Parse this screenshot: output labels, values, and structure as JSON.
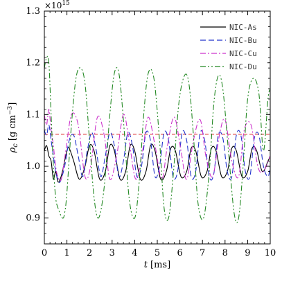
{
  "chart_data": {
    "type": "line",
    "xlabel": "t",
    "xlabel_unit": "[ms]",
    "ylabel": "ρc [g cm−3]",
    "ylabel_main": "ρ",
    "ylabel_sub": "c",
    "ylabel_unit": "[g cm",
    "ylabel_exp": "−3",
    "ylabel_close": "]",
    "y_multiplier": "×10",
    "y_multiplier_exp": "15",
    "xlim": [
      0,
      10
    ],
    "ylim": [
      0.85,
      1.3
    ],
    "x_ticks": [
      0,
      1,
      2,
      3,
      4,
      5,
      6,
      7,
      8,
      9,
      10
    ],
    "x_tick_labels": [
      "0",
      "1",
      "2",
      "3",
      "4",
      "5",
      "6",
      "7",
      "8",
      "9",
      "10"
    ],
    "y_ticks": [
      0.9,
      1.0,
      1.1,
      1.2,
      1.3
    ],
    "y_tick_labels": [
      "0.9",
      "1.0",
      "1.1",
      "1.2",
      "1.3"
    ],
    "grid": false,
    "legend_position": "top-right",
    "reference_line": {
      "y": 1.062,
      "color": "#dd3333",
      "style": "dashed"
    },
    "series": [
      {
        "name": "NIC-As",
        "color": "#000000",
        "style": "solid",
        "x": [
          0,
          0.1,
          0.2,
          0.3,
          0.4,
          0.5,
          0.6,
          0.7,
          0.8,
          1.0,
          1.1,
          1.3,
          1.55,
          1.8,
          2.0,
          2.2,
          2.45,
          2.7,
          2.9,
          3.1,
          3.35,
          3.6,
          3.8,
          4.0,
          4.25,
          4.5,
          4.7,
          4.9,
          5.15,
          5.4,
          5.6,
          5.8,
          6.05,
          6.3,
          6.5,
          6.7,
          6.95,
          7.2,
          7.4,
          7.6,
          7.85,
          8.1,
          8.3,
          8.5,
          8.75,
          9.0,
          9.2,
          9.4,
          9.65,
          9.9,
          10.0
        ],
        "y": [
          1.03,
          1.04,
          1.02,
          1.01,
          0.975,
          0.99,
          0.97,
          0.975,
          0.99,
          1.03,
          1.035,
          1.01,
          0.975,
          1.0,
          1.04,
          1.03,
          0.975,
          0.99,
          1.04,
          1.03,
          0.975,
          0.99,
          1.04,
          1.03,
          0.975,
          0.99,
          1.04,
          1.03,
          0.975,
          0.99,
          1.035,
          1.03,
          0.98,
          0.99,
          1.035,
          1.03,
          0.98,
          0.99,
          1.035,
          1.03,
          0.98,
          0.99,
          1.035,
          1.03,
          0.98,
          0.99,
          1.035,
          1.03,
          0.99,
          1.01,
          1.02
        ]
      },
      {
        "name": "NIC-Bu",
        "color": "#2233cc",
        "style": "dashed",
        "x": [
          0,
          0.1,
          0.2,
          0.3,
          0.4,
          0.5,
          0.6,
          0.7,
          0.9,
          1.1,
          1.3,
          1.5,
          1.7,
          1.9,
          2.1,
          2.3,
          2.5,
          2.7,
          2.9,
          3.1,
          3.3,
          3.5,
          3.7,
          3.9,
          4.1,
          4.3,
          4.5,
          4.7,
          4.9,
          5.1,
          5.3,
          5.5,
          5.7,
          5.9,
          6.1,
          6.3,
          6.5,
          6.7,
          6.9,
          7.1,
          7.3,
          7.5,
          7.7,
          7.9,
          8.1,
          8.3,
          8.5,
          8.7,
          8.9,
          9.1,
          9.3,
          9.5,
          9.7,
          9.9,
          10.0
        ],
        "y": [
          1.07,
          1.06,
          1.08,
          1.05,
          1.02,
          0.99,
          0.975,
          0.97,
          1.0,
          1.05,
          1.06,
          1.02,
          0.98,
          1.03,
          1.065,
          1.03,
          0.98,
          1.02,
          1.065,
          1.04,
          0.98,
          1.01,
          1.065,
          1.04,
          0.98,
          1.0,
          1.065,
          1.05,
          0.98,
          1.0,
          1.065,
          1.05,
          0.98,
          0.99,
          1.065,
          1.05,
          0.98,
          0.99,
          1.065,
          1.05,
          0.98,
          0.985,
          1.06,
          1.055,
          0.99,
          0.98,
          1.06,
          1.06,
          0.99,
          0.98,
          1.055,
          1.06,
          1.0,
          0.98,
          1.0
        ]
      },
      {
        "name": "NIC-Cu",
        "color": "#cc33cc",
        "style": "dashdot",
        "x": [
          0,
          0.1,
          0.2,
          0.3,
          0.4,
          0.5,
          0.6,
          0.75,
          0.95,
          1.2,
          1.5,
          1.8,
          2.05,
          2.35,
          2.65,
          2.9,
          3.2,
          3.5,
          3.75,
          4.05,
          4.35,
          4.6,
          4.9,
          5.2,
          5.45,
          5.75,
          6.05,
          6.3,
          6.6,
          6.9,
          7.15,
          7.45,
          7.75,
          8.0,
          8.3,
          8.6,
          8.85,
          9.15,
          9.45,
          9.7,
          10.0
        ],
        "y": [
          1.1,
          1.08,
          1.11,
          1.07,
          1.04,
          1.0,
          0.98,
          0.975,
          1.03,
          1.1,
          1.08,
          0.98,
          1.0,
          1.095,
          1.06,
          0.975,
          1.02,
          1.1,
          1.05,
          0.975,
          1.03,
          1.095,
          1.04,
          0.975,
          1.04,
          1.095,
          1.03,
          0.975,
          1.05,
          1.09,
          1.02,
          0.98,
          1.06,
          1.09,
          1.01,
          0.98,
          1.07,
          1.08,
          1.0,
          0.99,
          1.02
        ]
      },
      {
        "name": "NIC-Du",
        "color": "#228822",
        "style": "dashdotdot",
        "x": [
          0,
          0.1,
          0.2,
          0.3,
          0.4,
          0.5,
          0.6,
          0.8,
          0.9,
          1.0,
          1.2,
          1.4,
          1.6,
          1.8,
          2.0,
          2.2,
          2.4,
          2.65,
          2.9,
          3.1,
          3.3,
          3.5,
          3.75,
          4.0,
          4.2,
          4.4,
          4.6,
          4.85,
          5.1,
          5.3,
          5.5,
          5.7,
          5.95,
          6.2,
          6.4,
          6.6,
          6.8,
          7.05,
          7.3,
          7.5,
          7.7,
          7.9,
          8.15,
          8.4,
          8.6,
          8.8,
          9.0,
          9.25,
          9.5,
          9.7,
          9.9,
          10.0
        ],
        "y": [
          1.19,
          1.21,
          1.2,
          1.1,
          1.0,
          0.94,
          0.92,
          0.9,
          0.91,
          0.95,
          1.08,
          1.17,
          1.19,
          1.16,
          1.05,
          0.94,
          0.9,
          0.96,
          1.1,
          1.18,
          1.18,
          1.09,
          0.94,
          0.9,
          0.97,
          1.1,
          1.18,
          1.17,
          1.05,
          0.92,
          0.9,
          0.98,
          1.12,
          1.175,
          1.16,
          1.06,
          0.93,
          0.9,
          0.99,
          1.12,
          1.175,
          1.15,
          1.03,
          0.91,
          0.9,
          1.0,
          1.13,
          1.17,
          1.14,
          1.03,
          1.13,
          1.15
        ]
      }
    ]
  }
}
